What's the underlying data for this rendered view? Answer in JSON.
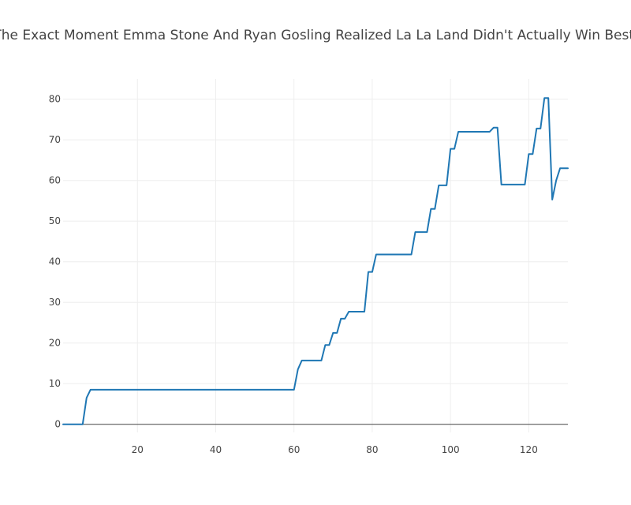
{
  "chart_data": {
    "type": "line",
    "title": "Here's The Exact Moment Emma Stone And Ryan Gosling Realized  La La Land  Didn't Actually Win Best Picture",
    "xlabel": "",
    "ylabel": "",
    "xlim": [
      1,
      130
    ],
    "ylim": [
      -2,
      85
    ],
    "x_ticks": [
      20,
      40,
      60,
      80,
      100,
      120
    ],
    "y_ticks": [
      0,
      10,
      20,
      30,
      40,
      50,
      60,
      70,
      80
    ],
    "grid": true,
    "legend": "none",
    "line_color": "#1f77b4",
    "series": [
      {
        "points": [
          [
            1,
            0
          ],
          [
            6,
            0
          ],
          [
            7,
            6.5
          ],
          [
            8,
            8.5
          ],
          [
            60,
            8.5
          ],
          [
            61,
            13.5
          ],
          [
            62,
            15.7
          ],
          [
            67,
            15.7
          ],
          [
            68,
            19.5
          ],
          [
            69,
            19.5
          ],
          [
            70,
            22.5
          ],
          [
            71,
            22.5
          ],
          [
            72,
            26
          ],
          [
            73,
            26
          ],
          [
            74,
            27.7
          ],
          [
            78,
            27.7
          ],
          [
            79,
            37.5
          ],
          [
            80,
            37.5
          ],
          [
            81,
            41.8
          ],
          [
            90,
            41.8
          ],
          [
            91,
            47.3
          ],
          [
            94,
            47.3
          ],
          [
            95,
            53
          ],
          [
            96,
            53
          ],
          [
            97,
            58.8
          ],
          [
            99,
            58.8
          ],
          [
            100,
            67.8
          ],
          [
            101,
            67.8
          ],
          [
            102,
            72
          ],
          [
            110,
            72
          ],
          [
            111,
            73
          ],
          [
            112,
            73
          ],
          [
            113,
            59
          ],
          [
            119,
            59
          ],
          [
            120,
            66.5
          ],
          [
            121,
            66.5
          ],
          [
            122,
            72.8
          ],
          [
            123,
            72.8
          ],
          [
            124,
            80.3
          ],
          [
            125,
            80.3
          ],
          [
            126,
            55.3
          ],
          [
            127,
            60
          ],
          [
            128,
            63
          ],
          [
            130,
            63
          ]
        ]
      }
    ]
  }
}
